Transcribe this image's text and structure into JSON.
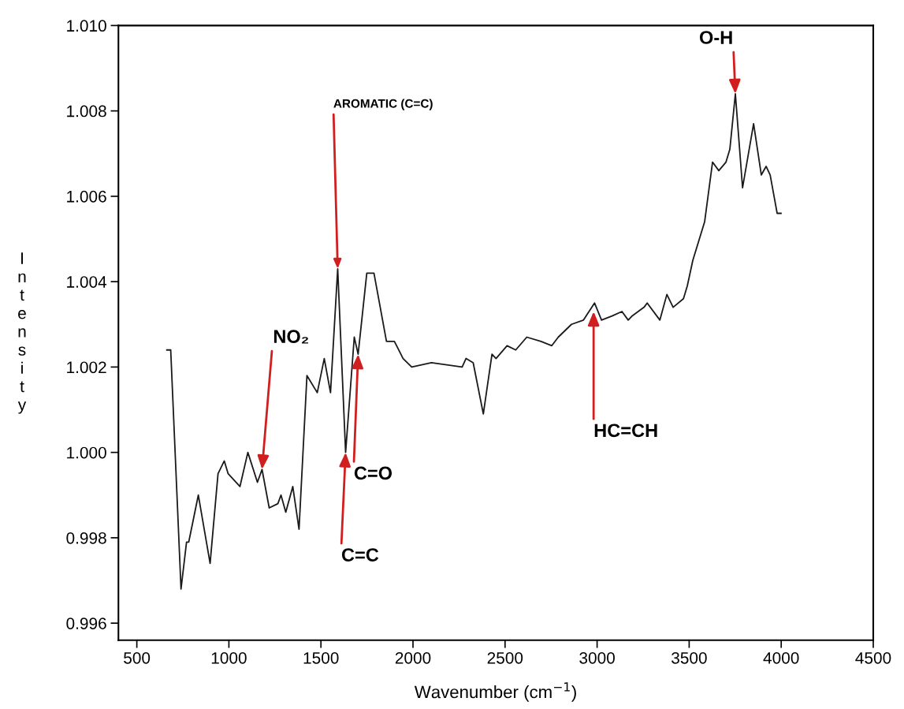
{
  "chart_data": {
    "type": "line",
    "xlabel": "Wavenumber (cm$^{−1}$)",
    "ylabel": "Intensity",
    "xlim": [
      400,
      4500
    ],
    "xticks": [
      500,
      1000,
      1500,
      2000,
      2500,
      3000,
      3500,
      4000,
      4500
    ],
    "ylim": [
      0.9956,
      1.01
    ],
    "yticks": [
      {
        "value": 0.996,
        "label": "0.996"
      },
      {
        "value": 0.998,
        "label": "0.998"
      },
      {
        "value": 1.0,
        "label": "1.000"
      },
      {
        "value": 1.002,
        "label": "1.002"
      },
      {
        "value": 1.004,
        "label": "1.004"
      },
      {
        "value": 1.006,
        "label": "1.006"
      },
      {
        "value": 1.008,
        "label": "1.008"
      },
      {
        "value": 1.01,
        "label": "1.010"
      }
    ],
    "grid": false,
    "legend": false,
    "marker": "none",
    "line_style": "solid",
    "series": [
      {
        "color": "#1a1a1a",
        "x": [
          663,
          684,
          740,
          770,
          782,
          834,
          898,
          941,
          975,
          996,
          1060,
          1103,
          1155,
          1180,
          1219,
          1266,
          1283,
          1309,
          1347,
          1381,
          1424,
          1480,
          1518,
          1552,
          1591,
          1634,
          1681,
          1702,
          1749,
          1788,
          1856,
          1899,
          1946,
          1993,
          2100,
          2267,
          2288,
          2327,
          2382,
          2429,
          2451,
          2511,
          2558,
          2618,
          2695,
          2754,
          2789,
          2861,
          2926,
          2986,
          3024,
          3084,
          3135,
          3169,
          3191,
          3255,
          3272,
          3341,
          3379,
          3413,
          3469,
          3490,
          3520,
          3584,
          3627,
          3661,
          3700,
          3721,
          3751,
          3790,
          3850,
          3892,
          3918,
          3940,
          3978,
          3999
        ],
        "values": [
          1.0024,
          1.0024,
          0.9968,
          0.9979,
          0.9979,
          0.999,
          0.9974,
          0.9995,
          0.9998,
          0.9995,
          0.9992,
          1.0,
          0.9993,
          0.9996,
          0.9987,
          0.9988,
          0.999,
          0.9986,
          0.9992,
          0.9982,
          1.0018,
          1.0014,
          1.0022,
          1.0014,
          1.0043,
          1.0,
          1.0027,
          1.0023,
          1.0042,
          1.0042,
          1.0026,
          1.0026,
          1.0022,
          1.002,
          1.0021,
          1.002,
          1.0022,
          1.0021,
          1.0009,
          1.0023,
          1.0022,
          1.0025,
          1.0024,
          1.0027,
          1.0026,
          1.0025,
          1.0027,
          1.003,
          1.0031,
          1.0035,
          1.0031,
          1.0032,
          1.0033,
          1.0031,
          1.0032,
          1.0034,
          1.0035,
          1.0031,
          1.0037,
          1.0034,
          1.0036,
          1.0039,
          1.0045,
          1.0054,
          1.0068,
          1.0066,
          1.0068,
          1.0071,
          1.0084,
          1.0062,
          1.0077,
          1.0065,
          1.0067,
          1.0065,
          1.0056,
          1.0056
        ]
      }
    ],
    "annotations": [
      {
        "text": "O-H",
        "x": 3751,
        "y": 1.0084
      },
      {
        "text": "AROMATIC (C=C)",
        "x": 1591,
        "y": 1.0043
      },
      {
        "text": "NO₂",
        "x": 1180,
        "y": 0.9996
      },
      {
        "text": "C=O",
        "x": 1702,
        "y": 1.0023
      },
      {
        "text": "C=C",
        "x": 1634,
        "y": 1.0
      },
      {
        "text": "HC=CH",
        "x": 2981,
        "y": 1.0033
      }
    ]
  }
}
